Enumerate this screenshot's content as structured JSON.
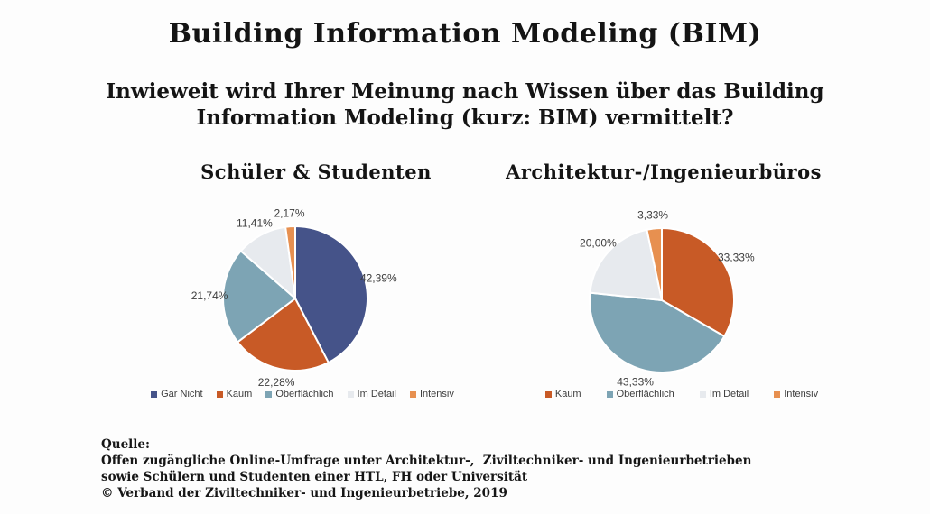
{
  "page": {
    "title": "Building Information Modeling (BIM)",
    "subtitle_lines": [
      "Inwieweit wird Ihrer Meinung nach Wissen über das Building",
      "Information Modeling (kurz: BIM) vermittelt?"
    ]
  },
  "colors": {
    "gar_nicht": "#455389",
    "kaum": "#C85A26",
    "oberflaechlich": "#7DA4B4",
    "im_detail": "#E7EAEE",
    "intensiv": "#E79050",
    "slice_border": "#FFFFFF",
    "label_text": "#3D3D3D"
  },
  "chart_data": [
    {
      "type": "pie",
      "title": "Schüler & Studenten",
      "labels": [
        "Gar Nicht",
        "Kaum",
        "Oberflächlich",
        "Im Detail",
        "Intensiv"
      ],
      "values": [
        42.39,
        22.28,
        21.74,
        11.41,
        2.17
      ],
      "value_labels": [
        "42,39%",
        "22,28%",
        "21,74%",
        "11,41%",
        "2,17%"
      ],
      "colors": [
        "#455389",
        "#C85A26",
        "#7DA4B4",
        "#E7EAEE",
        "#E79050"
      ],
      "start_angle_deg": 0,
      "direction": "clockwise",
      "legend_position": "bottom"
    },
    {
      "type": "pie",
      "title": "Architektur-/Ingenieurbüros",
      "labels": [
        "Kaum",
        "Oberflächlich",
        "Im Detail",
        "Intensiv"
      ],
      "values": [
        33.33,
        43.33,
        20.0,
        3.33
      ],
      "value_labels": [
        "33,33%",
        "43,33%",
        "20,00%",
        "3,33%"
      ],
      "colors": [
        "#C85A26",
        "#7DA4B4",
        "#E7EAEE",
        "#E79050"
      ],
      "start_angle_deg": 0,
      "direction": "clockwise",
      "legend_position": "bottom"
    }
  ],
  "source": {
    "lines": [
      "Quelle:",
      "Offen zugängliche Online-Umfrage unter Architektur-,  Ziviltechniker- und Ingenieurbetrieben",
      "sowie Schülern und Studenten einer HTL, FH oder Universität",
      "© Verband der Ziviltechniker- und Ingenieurbetriebe, 2019"
    ]
  }
}
